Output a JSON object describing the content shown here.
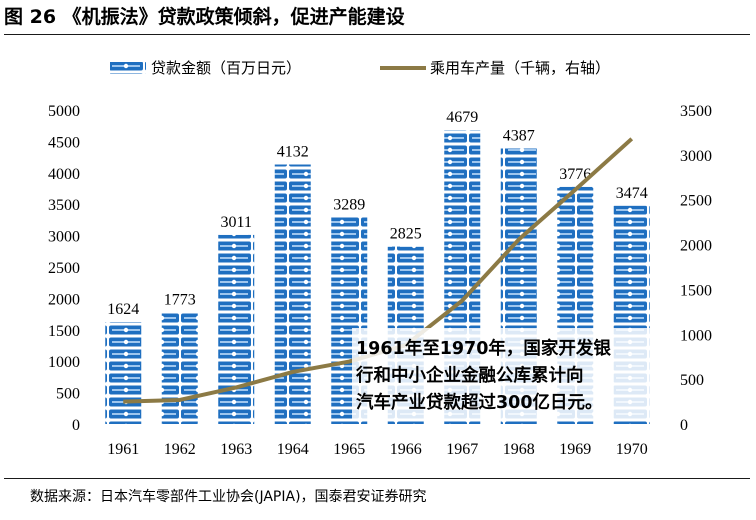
{
  "title": "图 26 《机振法》贷款政策倾斜，促进产能建设",
  "source": "数据来源：日本汽车零部件工业协会(JAPIA)，国泰君安证券研究",
  "colors": {
    "bar": "#1f6fc0",
    "bar_light": "#ffffff",
    "line": "#8c7a45",
    "rule": "#1a1a1a"
  },
  "chart_data": {
    "type": "bar",
    "categories": [
      "1961",
      "1962",
      "1963",
      "1964",
      "1965",
      "1966",
      "1967",
      "1968",
      "1969",
      "1970"
    ],
    "series": [
      {
        "name": "贷款金额（百万日元）",
        "type": "bar",
        "axis": "left",
        "values": [
          1624,
          1773,
          3011,
          4132,
          3289,
          2825,
          4679,
          4387,
          3776,
          3474
        ]
      },
      {
        "name": "乘用车产量（千辆，右轴）",
        "type": "line",
        "axis": "right",
        "values": [
          250,
          268,
          408,
          580,
          696,
          878,
          1376,
          2056,
          2611,
          3179
        ]
      }
    ],
    "y_left": {
      "min": 0,
      "max": 5000,
      "step": 500,
      "ticks": [
        "0",
        "500",
        "1000",
        "1500",
        "2000",
        "2500",
        "3000",
        "3500",
        "4000",
        "4500",
        "5000"
      ]
    },
    "y_right": {
      "min": 0,
      "max": 3500,
      "step": 500,
      "ticks": [
        "0",
        "500",
        "1000",
        "1500",
        "2000",
        "2500",
        "3000",
        "3500"
      ]
    },
    "legend": {
      "position": "top",
      "items": [
        "贷款金额（百万日元）",
        "乘用车产量（千辆，右轴）"
      ]
    },
    "annotation": {
      "lines": [
        "1961年至1970年，国家开发银",
        "行和中小企业金融公库累计向",
        "汽车产业贷款超过300亿日元。"
      ]
    },
    "grid": false
  }
}
